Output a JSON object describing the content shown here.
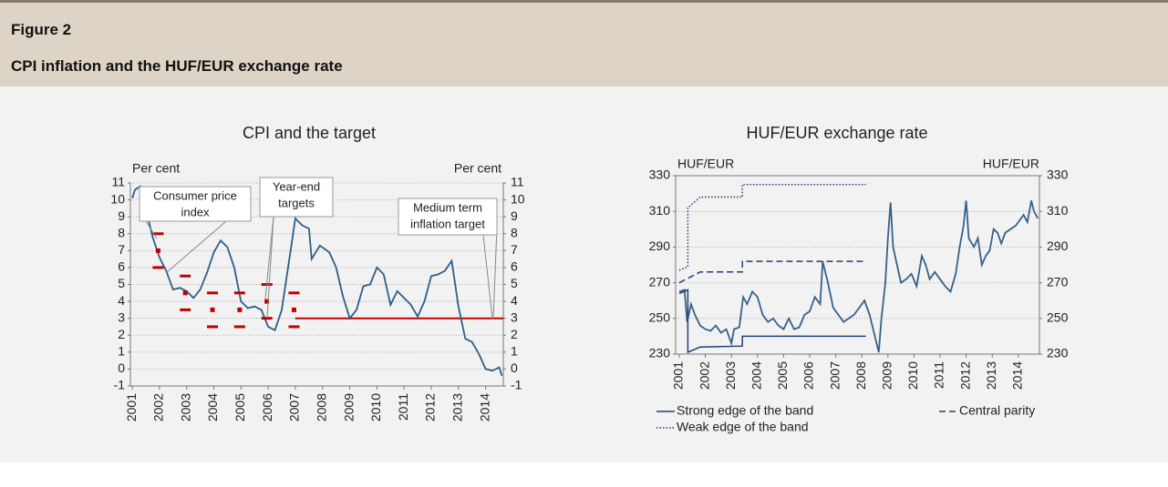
{
  "header": {
    "figure": "Figure 2",
    "title": "CPI inflation and the HUF/EUR exchange rate"
  },
  "chart_data": [
    {
      "type": "line",
      "title": "CPI and the target",
      "ylabel": "Per cent",
      "y2label": "Per cent",
      "xlim": [
        2000.93,
        2014.65
      ],
      "xticks": [
        2001,
        2002,
        2003,
        2004,
        2005,
        2006,
        2007,
        2008,
        2009,
        2010,
        2011,
        2012,
        2013,
        2014
      ],
      "ylim": [
        -1,
        11
      ],
      "yticks": [
        -1,
        0,
        1,
        2,
        3,
        4,
        5,
        6,
        7,
        8,
        9,
        10,
        11
      ],
      "y2lim": [
        -1,
        11
      ],
      "y2ticks": [
        -1,
        0,
        1,
        2,
        3,
        4,
        5,
        6,
        7,
        8,
        9,
        10,
        11
      ],
      "grid": true,
      "series": [
        {
          "color": "#2c5f8a",
          "x": [
            2001.0,
            2001.1,
            2001.3,
            2001.5,
            2001.75,
            2002.0,
            2002.25,
            2002.5,
            2002.75,
            2003.0,
            2003.25,
            2003.5,
            2003.75,
            2004.0,
            2004.25,
            2004.5,
            2004.75,
            2005.0,
            2005.25,
            2005.5,
            2005.75,
            2006.0,
            2006.25,
            2006.5,
            2006.75,
            2007.0,
            2007.25,
            2007.5,
            2007.6,
            2007.9,
            2008.25,
            2008.5,
            2008.75,
            2009.0,
            2009.25,
            2009.5,
            2009.75,
            2010.0,
            2010.25,
            2010.5,
            2010.75,
            2011.0,
            2011.25,
            2011.5,
            2011.75,
            2012.0,
            2012.25,
            2012.5,
            2012.75,
            2013.0,
            2013.25,
            2013.5,
            2013.75,
            2014.0,
            2014.25,
            2014.5,
            2014.6
          ],
          "values": [
            10.1,
            10.6,
            10.8,
            9.5,
            7.8,
            6.6,
            5.8,
            4.7,
            4.8,
            4.6,
            4.2,
            4.7,
            5.7,
            6.9,
            7.6,
            7.2,
            6.0,
            4.0,
            3.6,
            3.7,
            3.5,
            2.5,
            2.3,
            3.5,
            6.2,
            8.9,
            8.5,
            8.3,
            6.5,
            7.3,
            6.9,
            6.0,
            4.3,
            3.0,
            3.5,
            4.9,
            5.0,
            6.0,
            5.6,
            3.8,
            4.6,
            4.2,
            3.8,
            3.1,
            4.0,
            5.5,
            5.6,
            5.8,
            6.4,
            3.7,
            1.8,
            1.6,
            0.9,
            0.0,
            -0.1,
            0.1,
            -0.4
          ]
        }
      ],
      "target": {
        "color": "#c00000",
        "x": [
          2007.0,
          2014.65
        ],
        "values": [
          3,
          3
        ]
      },
      "year_end_targets": {
        "color": "#c00000",
        "x": [
          2001.95,
          2002.95,
          2003.95,
          2004.95,
          2005.95,
          2006.95
        ],
        "values": [
          7,
          4.5,
          3.5,
          3.5,
          4,
          3.5
        ],
        "upper": [
          8,
          5.5,
          4.5,
          4.5,
          5,
          4.5
        ],
        "lower": [
          6,
          3.5,
          2.5,
          2.5,
          3,
          2.5
        ]
      },
      "annotations": [
        {
          "lines": [
            "Consumer price",
            "index"
          ]
        },
        {
          "lines": [
            "Year-end",
            "targets"
          ]
        },
        {
          "lines": [
            "Medium term",
            "inflation target"
          ]
        }
      ]
    },
    {
      "type": "line",
      "title": "HUF/EUR exchange rate",
      "ylabel": "HUF/EUR",
      "y2label": "HUF/EUR",
      "xlim": [
        2000.86,
        2014.81
      ],
      "xticks": [
        2001,
        2002,
        2003,
        2004,
        2005,
        2006,
        2007,
        2008,
        2009,
        2010,
        2011,
        2012,
        2013,
        2014
      ],
      "ylim": [
        230,
        330
      ],
      "yticks": [
        230,
        250,
        270,
        290,
        310,
        330
      ],
      "y2lim": [
        230,
        330
      ],
      "y2ticks": [
        230,
        250,
        270,
        290,
        310,
        330
      ],
      "grid": true,
      "series": [
        {
          "color": "#36618a",
          "x": [
            2001.0,
            2001.2,
            2001.3,
            2001.45,
            2001.6,
            2001.8,
            2002.0,
            2002.2,
            2002.4,
            2002.6,
            2002.8,
            2003.0,
            2003.1,
            2003.3,
            2003.45,
            2003.6,
            2003.8,
            2004.0,
            2004.2,
            2004.4,
            2004.6,
            2004.8,
            2005.0,
            2005.2,
            2005.4,
            2005.6,
            2005.8,
            2006.0,
            2006.2,
            2006.4,
            2006.5,
            2006.7,
            2006.9,
            2007.1,
            2007.3,
            2007.5,
            2007.7,
            2007.9,
            2008.1,
            2008.3,
            2008.5,
            2008.65,
            2008.75,
            2008.9,
            2009.0,
            2009.1,
            2009.2,
            2009.35,
            2009.5,
            2009.7,
            2009.9,
            2010.1,
            2010.3,
            2010.45,
            2010.6,
            2010.8,
            2011.0,
            2011.2,
            2011.4,
            2011.6,
            2011.75,
            2011.9,
            2012.0,
            2012.1,
            2012.3,
            2012.45,
            2012.6,
            2012.75,
            2012.9,
            2013.05,
            2013.2,
            2013.35,
            2013.5,
            2013.7,
            2013.9,
            2014.05,
            2014.2,
            2014.35,
            2014.5,
            2014.6,
            2014.75
          ],
          "values": [
            265,
            266,
            248,
            258,
            252,
            246,
            244,
            243,
            246,
            242,
            244,
            236,
            244,
            245,
            262,
            258,
            265,
            262,
            252,
            248,
            250,
            246,
            244,
            250,
            244,
            245,
            252,
            254,
            262,
            258,
            282,
            270,
            256,
            252,
            248,
            250,
            252,
            256,
            260,
            252,
            240,
            231,
            250,
            270,
            295,
            315,
            290,
            280,
            270,
            272,
            275,
            268,
            285,
            280,
            272,
            276,
            272,
            268,
            265,
            275,
            290,
            302,
            316,
            295,
            290,
            295,
            280,
            285,
            288,
            300,
            298,
            292,
            298,
            300,
            302,
            305,
            308,
            304,
            316,
            310,
            306
          ]
        },
        {
          "name": "Strong edge of the band",
          "color": "#1f3f73",
          "style": "solid",
          "x": [
            2001.0,
            2001.33,
            2001.33,
            2001.8,
            2003.42,
            2003.42,
            2008.15
          ],
          "values": [
            264,
            266,
            231,
            234,
            234.5,
            240,
            240
          ]
        },
        {
          "name": "Central parity",
          "color": "#1f3f73",
          "style": "dashed",
          "x": [
            2001.0,
            2001.8,
            2003.42,
            2003.42,
            2008.15
          ],
          "values": [
            270,
            276,
            276,
            282,
            282
          ]
        },
        {
          "name": "Weak edge of the band",
          "color": "#1f3f73",
          "style": "dotted",
          "x": [
            2001.0,
            2001.33,
            2001.33,
            2001.8,
            2003.42,
            2003.42,
            2008.15
          ],
          "values": [
            277,
            279,
            312,
            318,
            318,
            325,
            325
          ]
        }
      ]
    }
  ]
}
